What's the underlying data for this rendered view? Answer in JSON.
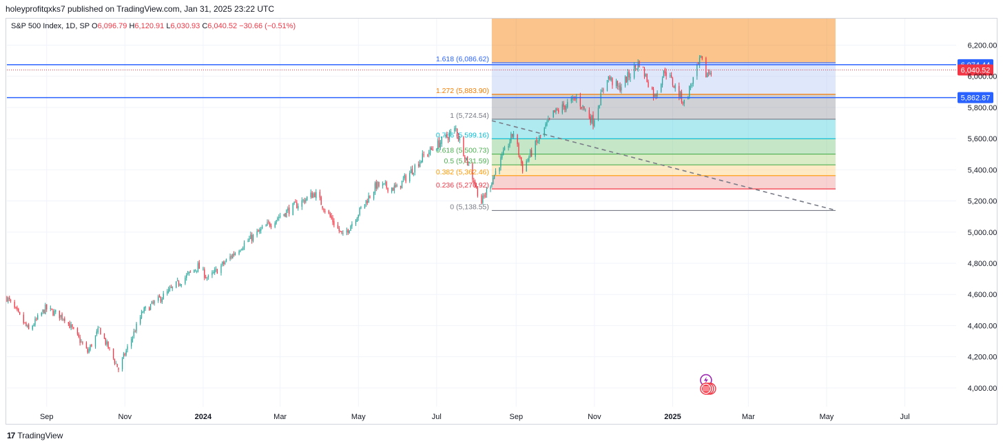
{
  "header": {
    "published_by": "holeyprofitqxks7 published on TradingView.com, Jan 31, 2025 23:22 UTC"
  },
  "legend": {
    "symbol": "S&P 500 Index, 1D, SP",
    "open_label": "O",
    "open": "6,096.79",
    "high_label": "H",
    "high": "6,120.91",
    "low_label": "L",
    "low": "6,030.93",
    "close_label": "C",
    "close": "6,040.52",
    "change": "−30.66 (−0.51%)"
  },
  "footer": {
    "brand": "TradingView"
  },
  "colors": {
    "up": "#26a69a",
    "down": "#f23645",
    "blue_line": "#2962ff",
    "price_tag": "#f23645",
    "grid": "#f0f3fa",
    "axis_text": "#131722"
  },
  "chart_data": {
    "type": "candlestick",
    "ylim": [
      3880,
      6370
    ],
    "y_ticks": [
      "6,200.00",
      "6,000.00",
      "5,800.00",
      "5,600.00",
      "5,400.00",
      "5,200.00",
      "5,000.00",
      "4,800.00",
      "4,600.00",
      "4,400.00",
      "4,200.00",
      "4,000.00"
    ],
    "y_tick_values": [
      6200,
      6000,
      5800,
      5600,
      5400,
      5200,
      5000,
      4800,
      4600,
      4400,
      4200,
      4000
    ],
    "x_ticks": [
      "Sep",
      "Nov",
      "2024",
      "Mar",
      "May",
      "Jul",
      "Sep",
      "Nov",
      "2025",
      "Mar",
      "May",
      "Jul"
    ],
    "x_tick_dates": [
      "2023-09-01",
      "2023-11-01",
      "2024-01-01",
      "2024-03-01",
      "2024-05-01",
      "2024-07-01",
      "2024-09-01",
      "2024-11-01",
      "2025-01-01",
      "2025-03-01",
      "2025-05-01",
      "2025-07-01"
    ],
    "x_bold": [
      "2024",
      "2025"
    ],
    "price_path": [
      {
        "date": "2023-08-01",
        "value": 4580
      },
      {
        "date": "2023-08-18",
        "value": 4370
      },
      {
        "date": "2023-08-31",
        "value": 4510
      },
      {
        "date": "2023-09-15",
        "value": 4450
      },
      {
        "date": "2023-10-03",
        "value": 4230
      },
      {
        "date": "2023-10-12",
        "value": 4380
      },
      {
        "date": "2023-10-27",
        "value": 4120
      },
      {
        "date": "2023-11-15",
        "value": 4490
      },
      {
        "date": "2023-12-01",
        "value": 4590
      },
      {
        "date": "2023-12-28",
        "value": 4780
      },
      {
        "date": "2024-01-05",
        "value": 4700
      },
      {
        "date": "2024-02-01",
        "value": 4920
      },
      {
        "date": "2024-02-29",
        "value": 5100
      },
      {
        "date": "2024-03-28",
        "value": 5250
      },
      {
        "date": "2024-04-19",
        "value": 4970
      },
      {
        "date": "2024-05-15",
        "value": 5300
      },
      {
        "date": "2024-05-31",
        "value": 5280
      },
      {
        "date": "2024-06-20",
        "value": 5480
      },
      {
        "date": "2024-07-16",
        "value": 5660
      },
      {
        "date": "2024-08-05",
        "value": 5190
      },
      {
        "date": "2024-08-30",
        "value": 5640
      },
      {
        "date": "2024-09-06",
        "value": 5410
      },
      {
        "date": "2024-09-30",
        "value": 5760
      },
      {
        "date": "2024-10-18",
        "value": 5860
      },
      {
        "date": "2024-10-31",
        "value": 5710
      },
      {
        "date": "2024-11-11",
        "value": 6000
      },
      {
        "date": "2024-11-20",
        "value": 5920
      },
      {
        "date": "2024-12-06",
        "value": 6090
      },
      {
        "date": "2024-12-18",
        "value": 5870
      },
      {
        "date": "2024-12-26",
        "value": 6040
      },
      {
        "date": "2025-01-10",
        "value": 5830
      },
      {
        "date": "2025-01-23",
        "value": 6110
      },
      {
        "date": "2025-01-27",
        "value": 6010
      },
      {
        "date": "2025-01-31",
        "value": 6040
      }
    ],
    "horizontal_lines": [
      {
        "value": 6074.44,
        "label": "6,074.44",
        "color": "#2962ff"
      },
      {
        "value": 5862.87,
        "label": "5,862.87",
        "color": "#2962ff"
      }
    ],
    "current_price": {
      "value": 6040.52,
      "label": "6,040.52",
      "color": "#f23645"
    },
    "fib_extension": {
      "start_date": "2024-08-13",
      "end_date": "2025-05-08",
      "levels": [
        {
          "label": "1.618 (6,086.62)",
          "value": 6086.62,
          "color": "#2962ff",
          "fill": "#f57c00"
        },
        {
          "label": "1.272 (5,883.90)",
          "value": 5883.9,
          "color": "#f57c00",
          "fill": "#b7c9f5"
        },
        {
          "label": "1 (5,724.54)",
          "value": 5724.54,
          "color": "#787b86",
          "fill": "#9598a1"
        },
        {
          "label": "0.786 (5,599.16)",
          "value": 5599.16,
          "color": "#00bcd4",
          "fill": "#4dd0e1"
        },
        {
          "label": "0.618 (5,500.73)",
          "value": 5500.73,
          "color": "#4caf50",
          "fill": "#81c784"
        },
        {
          "label": "0.5 (5,431.59)",
          "value": 5431.59,
          "color": "#4caf50",
          "fill": "#aed581"
        },
        {
          "label": "0.382 (5,362.46)",
          "value": 5362.46,
          "color": "#ff9800",
          "fill": "#ffd180"
        },
        {
          "label": "0.236 (5,276.92)",
          "value": 5276.92,
          "color": "#f23645",
          "fill": "#ef9a9a"
        },
        {
          "label": "0 (5,138.55)",
          "value": 5138.55,
          "color": "#787b86",
          "fill": null
        }
      ],
      "top_value": 6370
    },
    "trendline": {
      "start": {
        "date": "2024-08-13",
        "value": 5715
      },
      "end": {
        "date": "2025-05-08",
        "value": 5140
      },
      "color": "#787b86"
    },
    "event_icons": [
      {
        "name": "lightning-icon",
        "date": "2025-01-27",
        "value": 4050,
        "color": "#9c27b0"
      },
      {
        "name": "us-flag-icon",
        "date": "2025-01-27",
        "value": 3995,
        "color": "#f23645"
      }
    ]
  }
}
